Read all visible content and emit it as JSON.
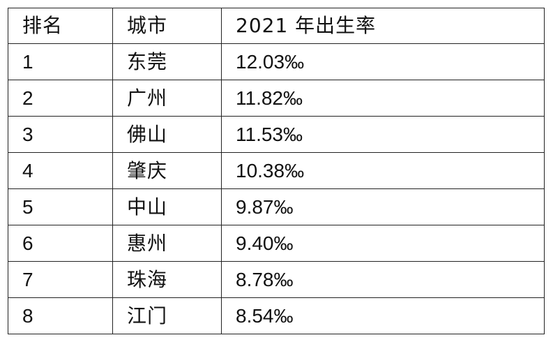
{
  "table": {
    "headers": [
      "排名",
      "城市",
      "2021 年出生率"
    ],
    "rows": [
      {
        "rank": "1",
        "city": "东莞",
        "rate": "12.03‰"
      },
      {
        "rank": "2",
        "city": "广州",
        "rate": "11.82‰"
      },
      {
        "rank": "3",
        "city": "佛山",
        "rate": "11.53‰"
      },
      {
        "rank": "4",
        "city": "肇庆",
        "rate": "10.38‰"
      },
      {
        "rank": "5",
        "city": "中山",
        "rate": "9.87‰"
      },
      {
        "rank": "6",
        "city": "惠州",
        "rate": "9.40‰"
      },
      {
        "rank": "7",
        "city": "珠海",
        "rate": "8.78‰"
      },
      {
        "rank": "8",
        "city": "江门",
        "rate": "8.54‰"
      }
    ]
  }
}
